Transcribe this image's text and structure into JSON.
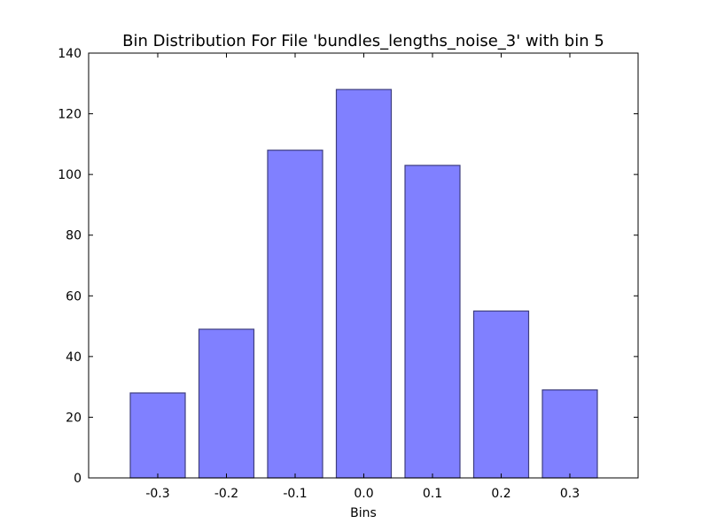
{
  "chart_data": {
    "type": "bar",
    "title": "Bin Distribution For File 'bundles_lengths_noise_3' with bin 5",
    "xlabel": "Bins",
    "ylabel": "",
    "categories": [
      "-0.3",
      "-0.2",
      "-0.1",
      "0.0",
      "0.1",
      "0.2",
      "0.3"
    ],
    "values": [
      28,
      49,
      108,
      128,
      103,
      55,
      29
    ],
    "ylim": [
      0,
      140
    ],
    "yticks": [
      "0",
      "20",
      "40",
      "60",
      "80",
      "100",
      "120",
      "140"
    ],
    "bar_color": "#8080ff",
    "bar_edge_color": "#3f3f7f",
    "grid": false,
    "legend": "none"
  }
}
